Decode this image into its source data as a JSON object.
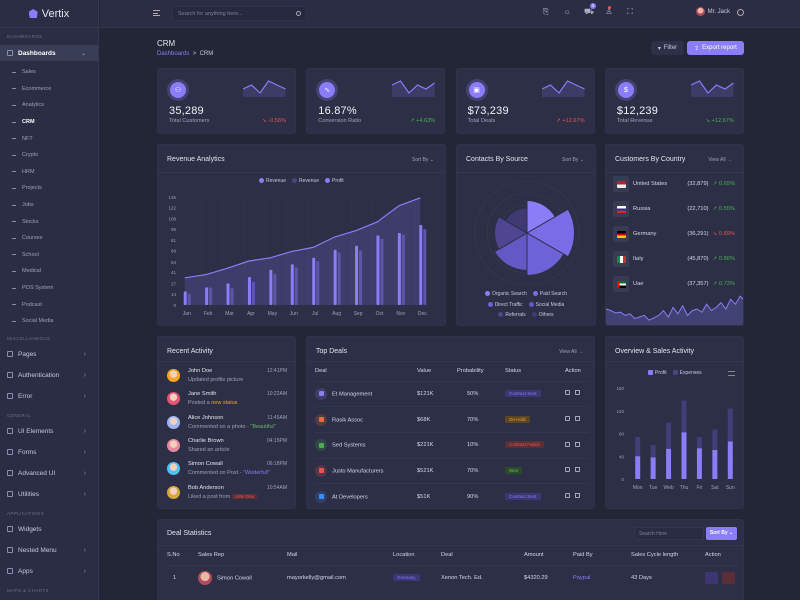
{
  "app": {
    "name": "Vertix"
  },
  "header": {
    "search_placeholder": "Search for anything here...",
    "cart_badge": "5",
    "user_name": "Mr. Jack"
  },
  "sidebar": {
    "sections": {
      "dashboards": "DASHBOARDS",
      "misc": "MISCELLANEOUS",
      "general": "GENERAL",
      "applications": "APPLICATIONS",
      "maps": "MAPS & CHARTS"
    },
    "dashboards_label": "Dashboards",
    "sub_items": [
      "Sales",
      "Ecommerce",
      "Analytics",
      "CRM",
      "NFT",
      "Crypto",
      "HRM",
      "Projects",
      "Jobs",
      "Stocks",
      "Courses",
      "School",
      "Medical",
      "POS System",
      "Podcast",
      "Social Media"
    ],
    "misc_items": [
      "Pages",
      "Authentication",
      "Error"
    ],
    "general_items": [
      "UI Elements",
      "Forms",
      "Advanced UI",
      "Utilities"
    ],
    "app_items": [
      "Widgets",
      "Nested Menu",
      "Apps"
    ]
  },
  "page": {
    "title": "CRM",
    "breadcrumb_root": "Dashboards",
    "breadcrumb_sep": ">",
    "breadcrumb_current": "CRM",
    "filter_label": "Filter",
    "export_label": "Export report"
  },
  "stats": [
    {
      "value": "35,289",
      "label": "Total Customers",
      "change": "-0.56%",
      "trend": "down",
      "color": "#ef5350"
    },
    {
      "value": "16.87%",
      "label": "Conversion Ratio",
      "change": "+4.63%",
      "trend": "up",
      "color": "#4caf50"
    },
    {
      "value": "$73,239",
      "label": "Total Deals",
      "change": "+12.67%",
      "trend": "up",
      "color": "#ef5350"
    },
    {
      "value": "$12,239",
      "label": "Total Revenue",
      "change": "+12.67%",
      "trend": "down",
      "color": "#4caf50"
    }
  ],
  "revenue": {
    "title": "Revenue Analytics",
    "sort": "Sort By",
    "legend": [
      "Revenue",
      "Revenue",
      "Profit"
    ]
  },
  "contacts": {
    "title": "Contacts By Source",
    "sort": "Sort By",
    "legend": [
      "Organic Search",
      "Paid Search",
      "Direct Traffic",
      "Social Media",
      "Referrals",
      "Others"
    ]
  },
  "countries": {
    "title": "Customers By Country",
    "view_all": "View All →",
    "rows": [
      {
        "name": "United States",
        "count": "(32,879)",
        "change": "0.65%",
        "trend": "up"
      },
      {
        "name": "Russia",
        "count": "(22,710)",
        "change": "0.55%",
        "trend": "up"
      },
      {
        "name": "Germany",
        "count": "(36,291)",
        "change": "0.69%",
        "trend": "down"
      },
      {
        "name": "Italy",
        "count": "(45,870)",
        "change": "0.86%",
        "trend": "up"
      },
      {
        "name": "Uae",
        "count": "(37,357)",
        "change": "0.73%",
        "trend": "up"
      }
    ]
  },
  "activity": {
    "title": "Recent Activity",
    "items": [
      {
        "name": "John Doe",
        "time": "12:41PM",
        "desc": "Updated profile picture",
        "extra": ""
      },
      {
        "name": "Jane Smith",
        "time": "10:22AM",
        "desc": "Posted a ",
        "extra": "new status"
      },
      {
        "name": "Alice Johnson",
        "time": "11:45AM",
        "desc": "Commented on a photo - ",
        "extra": "\"Beautiful\""
      },
      {
        "name": "Charlie Brown",
        "time": "04:15PM",
        "desc": "Shared an article",
        "extra": ""
      },
      {
        "name": "Simon Cowall",
        "time": "06:18PM",
        "desc": "Commented on Post - ",
        "extra": "\"Woderful!\""
      },
      {
        "name": "Bob Anderson",
        "time": "10:54AM",
        "desc": "Liked a post from ",
        "extra": "John Doe"
      }
    ]
  },
  "deals": {
    "title": "Top Deals",
    "view_all": "View All →",
    "headers": [
      "Deal",
      "Value",
      "Probability",
      "Status",
      "Action"
    ],
    "rows": [
      {
        "name": "Et Management",
        "value": "$121K",
        "prob": "50%",
        "status": "Contract Sent",
        "status_class": "p-sent",
        "color": "#8b7cf7"
      },
      {
        "name": "Rasik Assoc",
        "value": "$68K",
        "prob": "70%",
        "status": "On Hold",
        "status_class": "p-hold",
        "color": "#f26b3a"
      },
      {
        "name": "Sed Systems",
        "value": "$221K",
        "prob": "10%",
        "status": "Contract Failed",
        "status_class": "p-fail",
        "color": "#4caf50"
      },
      {
        "name": "Justo Manufacturers",
        "value": "$521K",
        "prob": "70%",
        "status": "Won",
        "status_class": "p-won",
        "color": "#ef5350"
      },
      {
        "name": "At Developers",
        "value": "$51K",
        "prob": "90%",
        "status": "Contract Sent",
        "status_class": "p-sent",
        "color": "#3b8cf7"
      }
    ]
  },
  "overview": {
    "title": "Overview & Sales Activity",
    "legend": [
      "Profit",
      "Expenses"
    ]
  },
  "dealstats": {
    "title": "Deal Statistics",
    "search_placeholder": "Search Here",
    "sort": "Sort By ⌄",
    "headers": [
      "S.No",
      "Sales Rep",
      "Mail",
      "Location",
      "Deal",
      "Amount",
      "Paid By",
      "Sales Cycle length",
      "Action"
    ],
    "rows": [
      {
        "sno": "1",
        "rep": "Simon Cowall",
        "mail": "mayorkelly@gmail.com",
        "location": "Germany",
        "deal": "Xenon Tech. Ed.",
        "amount": "$4320.29",
        "paid": "Paypal",
        "cycle": "43 Days"
      }
    ]
  },
  "chart_data": [
    {
      "type": "bar",
      "title": "Revenue Analytics",
      "categories": [
        "Jan",
        "Feb",
        "Mar",
        "Apr",
        "May",
        "Jun",
        "Jul",
        "Aug",
        "Sep",
        "Oct",
        "Nov",
        "Dec"
      ],
      "yticks": [
        0,
        14,
        27,
        41,
        54,
        68,
        81,
        95,
        108,
        122,
        135
      ],
      "ylim": [
        0,
        135
      ],
      "legend": "top",
      "series": [
        {
          "name": "Revenue (line)",
          "kind": "area",
          "values": [
            34,
            38,
            46,
            55,
            59,
            67,
            72,
            85,
            93,
            104,
            124,
            134
          ]
        },
        {
          "name": "Revenue",
          "kind": "bar",
          "values": [
            17,
            22,
            27,
            35,
            44,
            51,
            59,
            69,
            74,
            87,
            90,
            100
          ]
        },
        {
          "name": "Profit",
          "kind": "bar",
          "values": [
            14,
            22,
            21,
            29,
            39,
            47,
            55,
            66,
            68,
            83,
            88,
            95
          ]
        }
      ]
    },
    {
      "type": "pie",
      "title": "Contacts By Source",
      "subtype": "polar-area",
      "categories": [
        "Organic Search",
        "Paid Search",
        "Direct Traffic",
        "Social Media",
        "Referrals",
        "Others"
      ],
      "values": [
        65,
        95,
        85,
        75,
        65,
        50
      ],
      "legend": "bottom"
    },
    {
      "type": "line",
      "title": "Customers By Country trend",
      "values": [
        20,
        18,
        15,
        16,
        12,
        14,
        8,
        10,
        12,
        6,
        9,
        12,
        18,
        10,
        22,
        14,
        24,
        12,
        18,
        20,
        16,
        26,
        18,
        22,
        28,
        20,
        32,
        26,
        36,
        30
      ]
    },
    {
      "type": "bar",
      "title": "Overview & Sales Activity",
      "categories": [
        "Mon",
        "Tue",
        "Web",
        "Thu",
        "Fri",
        "Sat",
        "Sun"
      ],
      "yticks": [
        0,
        40,
        80,
        120,
        160
      ],
      "ylim": [
        0,
        160
      ],
      "legend": "top",
      "stacked": true,
      "series": [
        {
          "name": "Profit",
          "values": [
            40,
            38,
            53,
            82,
            54,
            51,
            66
          ]
        },
        {
          "name": "Expenses",
          "values": [
            34,
            22,
            46,
            56,
            20,
            36,
            58
          ]
        }
      ]
    }
  ]
}
